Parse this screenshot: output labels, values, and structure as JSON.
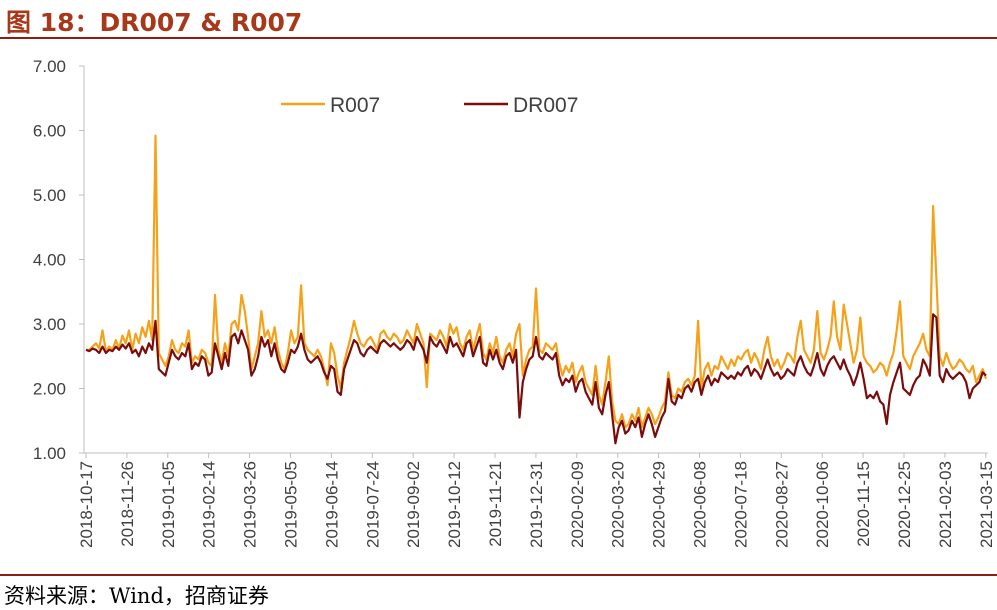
{
  "header": {
    "title": "图 18：DR007 & R007"
  },
  "footer": {
    "source": "资料来源：Wind，招商证券"
  },
  "chart_data": {
    "type": "line",
    "title": "",
    "xlabel": "",
    "ylabel": "",
    "ylim": [
      1.0,
      7.0
    ],
    "y_ticks": [
      "1.00",
      "2.00",
      "3.00",
      "4.00",
      "5.00",
      "6.00",
      "7.00"
    ],
    "x_ticks": [
      "2018-10-17",
      "2018-11-26",
      "2019-01-05",
      "2019-02-14",
      "2019-03-26",
      "2019-05-05",
      "2019-06-14",
      "2019-07-24",
      "2019-09-02",
      "2019-10-12",
      "2019-11-21",
      "2019-12-31",
      "2020-02-09",
      "2020-03-20",
      "2020-04-29",
      "2020-06-08",
      "2020-07-18",
      "2020-08-27",
      "2020-10-06",
      "2020-11-15",
      "2020-12-25",
      "2021-02-03",
      "2021-03-15"
    ],
    "legend": {
      "placement": "top"
    },
    "grid": false,
    "series": [
      {
        "name": "R007",
        "color": "#f5a21a",
        "values": [
          2.6,
          2.6,
          2.65,
          2.7,
          2.62,
          2.9,
          2.58,
          2.65,
          2.6,
          2.75,
          2.62,
          2.82,
          2.7,
          2.9,
          2.6,
          2.85,
          2.7,
          2.95,
          2.8,
          3.05,
          2.75,
          5.92,
          2.55,
          2.45,
          2.35,
          2.5,
          2.75,
          2.6,
          2.55,
          2.7,
          2.65,
          2.9,
          2.4,
          2.5,
          2.45,
          2.6,
          2.55,
          2.4,
          2.35,
          3.45,
          2.6,
          2.4,
          2.7,
          2.5,
          3.0,
          3.05,
          2.9,
          3.45,
          3.2,
          2.8,
          2.3,
          2.5,
          2.7,
          3.2,
          2.8,
          2.9,
          2.7,
          2.95,
          2.6,
          2.4,
          2.3,
          2.55,
          2.9,
          2.7,
          2.8,
          3.6,
          2.7,
          2.6,
          2.55,
          2.5,
          2.6,
          2.5,
          2.3,
          2.05,
          2.7,
          2.55,
          2.2,
          2.0,
          2.4,
          2.6,
          2.8,
          3.05,
          2.85,
          2.7,
          2.65,
          2.75,
          2.8,
          2.7,
          2.6,
          2.85,
          2.9,
          2.8,
          2.75,
          2.85,
          2.8,
          2.7,
          2.75,
          2.9,
          2.8,
          2.7,
          3.0,
          2.85,
          2.7,
          2.02,
          2.85,
          2.8,
          2.75,
          2.9,
          2.8,
          2.65,
          3.0,
          2.85,
          2.95,
          2.7,
          2.6,
          2.8,
          2.9,
          2.6,
          2.8,
          3.0,
          2.55,
          2.45,
          2.7,
          2.55,
          2.8,
          2.5,
          2.4,
          2.6,
          2.7,
          2.5,
          2.85,
          3.0,
          2.2,
          2.45,
          2.6,
          2.65,
          3.55,
          2.6,
          2.55,
          2.7,
          2.65,
          2.6,
          2.7,
          2.4,
          2.2,
          2.35,
          2.25,
          2.4,
          2.1,
          2.25,
          2.35,
          2.1,
          2.0,
          1.9,
          2.35,
          1.9,
          1.75,
          2.1,
          2.5,
          1.8,
          1.5,
          1.45,
          1.6,
          1.4,
          1.45,
          1.6,
          1.5,
          1.7,
          1.4,
          1.55,
          1.7,
          1.6,
          1.45,
          1.55,
          1.7,
          1.8,
          2.25,
          1.9,
          1.85,
          2.0,
          1.95,
          2.1,
          2.15,
          2.05,
          2.2,
          3.05,
          2.0,
          2.3,
          2.4,
          2.2,
          2.35,
          2.3,
          2.5,
          2.4,
          2.3,
          2.45,
          2.35,
          2.5,
          2.45,
          2.55,
          2.6,
          2.4,
          2.55,
          2.45,
          2.3,
          2.6,
          2.8,
          2.5,
          2.35,
          2.45,
          2.3,
          2.4,
          2.55,
          2.5,
          2.4,
          2.8,
          3.05,
          2.6,
          2.5,
          2.4,
          2.6,
          3.2,
          2.55,
          2.45,
          2.6,
          2.8,
          3.35,
          2.8,
          2.6,
          3.3,
          3.0,
          2.7,
          2.4,
          2.6,
          3.1,
          2.5,
          2.4,
          2.35,
          2.25,
          2.3,
          2.4,
          2.35,
          2.2,
          2.4,
          2.55,
          2.9,
          3.35,
          2.5,
          2.4,
          2.3,
          2.5,
          2.6,
          2.7,
          2.85,
          2.6,
          2.5,
          4.83,
          3.7,
          2.5,
          2.35,
          2.55,
          2.4,
          2.3,
          2.35,
          2.45,
          2.4,
          2.3,
          2.25,
          2.35,
          2.1,
          2.2,
          2.3,
          2.15
        ],
        "value_note": "approximate readings, evenly spaced from 2018-10-17 to 2021-03-19"
      },
      {
        "name": "DR007",
        "color": "#7a0c0c",
        "values": [
          2.6,
          2.58,
          2.62,
          2.6,
          2.55,
          2.65,
          2.55,
          2.6,
          2.58,
          2.65,
          2.6,
          2.68,
          2.62,
          2.7,
          2.55,
          2.6,
          2.5,
          2.65,
          2.55,
          2.7,
          2.6,
          3.05,
          2.3,
          2.25,
          2.2,
          2.4,
          2.6,
          2.5,
          2.45,
          2.55,
          2.5,
          2.7,
          2.3,
          2.4,
          2.35,
          2.5,
          2.45,
          2.2,
          2.25,
          2.7,
          2.5,
          2.3,
          2.55,
          2.35,
          2.8,
          2.85,
          2.7,
          2.9,
          2.75,
          2.6,
          2.2,
          2.3,
          2.5,
          2.8,
          2.65,
          2.75,
          2.5,
          2.7,
          2.45,
          2.3,
          2.25,
          2.4,
          2.6,
          2.55,
          2.65,
          2.85,
          2.6,
          2.45,
          2.4,
          2.45,
          2.5,
          2.4,
          2.25,
          2.15,
          2.35,
          2.3,
          1.95,
          1.9,
          2.3,
          2.45,
          2.6,
          2.75,
          2.7,
          2.55,
          2.5,
          2.6,
          2.65,
          2.6,
          2.55,
          2.7,
          2.75,
          2.7,
          2.65,
          2.7,
          2.65,
          2.6,
          2.65,
          2.75,
          2.7,
          2.6,
          2.8,
          2.7,
          2.6,
          2.4,
          2.8,
          2.7,
          2.65,
          2.75,
          2.65,
          2.55,
          2.8,
          2.65,
          2.7,
          2.6,
          2.5,
          2.7,
          2.75,
          2.5,
          2.65,
          2.8,
          2.4,
          2.35,
          2.6,
          2.45,
          2.6,
          2.4,
          2.3,
          2.5,
          2.55,
          2.4,
          2.6,
          1.55,
          2.1,
          2.3,
          2.45,
          2.5,
          2.8,
          2.5,
          2.45,
          2.55,
          2.5,
          2.45,
          2.55,
          2.2,
          2.05,
          2.15,
          2.1,
          2.2,
          1.95,
          2.1,
          2.15,
          1.95,
          1.85,
          1.75,
          2.1,
          1.7,
          1.6,
          1.9,
          2.1,
          1.6,
          1.15,
          1.4,
          1.5,
          1.3,
          1.35,
          1.5,
          1.4,
          1.55,
          1.25,
          1.45,
          1.6,
          1.45,
          1.25,
          1.4,
          1.55,
          1.65,
          2.15,
          1.8,
          1.75,
          1.9,
          1.85,
          2.0,
          2.05,
          1.95,
          2.1,
          2.15,
          1.9,
          2.1,
          2.2,
          2.05,
          2.15,
          2.1,
          2.25,
          2.2,
          2.15,
          2.2,
          2.15,
          2.25,
          2.2,
          2.3,
          2.35,
          2.2,
          2.3,
          2.25,
          2.15,
          2.3,
          2.45,
          2.3,
          2.2,
          2.25,
          2.15,
          2.2,
          2.3,
          2.25,
          2.2,
          2.4,
          2.5,
          2.35,
          2.25,
          2.2,
          2.35,
          2.55,
          2.3,
          2.2,
          2.35,
          2.45,
          2.5,
          2.4,
          2.3,
          2.45,
          2.3,
          2.2,
          2.05,
          2.2,
          2.4,
          2.15,
          1.85,
          1.9,
          1.85,
          1.95,
          1.8,
          1.75,
          1.45,
          1.9,
          2.1,
          2.25,
          2.4,
          2.0,
          1.95,
          1.9,
          2.05,
          2.15,
          2.2,
          2.45,
          2.35,
          2.2,
          3.15,
          3.1,
          2.2,
          2.1,
          2.3,
          2.2,
          2.15,
          2.2,
          2.25,
          2.2,
          2.1,
          1.85,
          2.0,
          2.05,
          2.1,
          2.25,
          2.2
        ]
      }
    ]
  }
}
